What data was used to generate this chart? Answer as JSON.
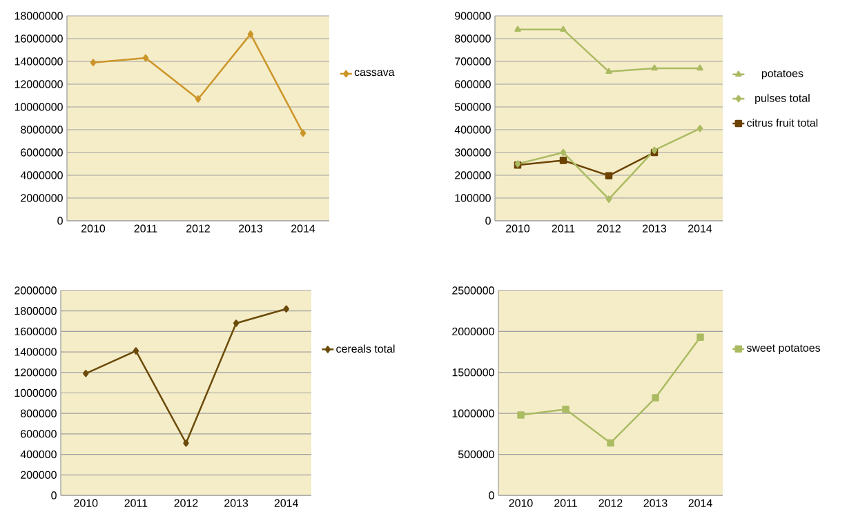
{
  "chart_data": [
    {
      "type": "line",
      "categories": [
        "2010",
        "2011",
        "2012",
        "2013",
        "2014"
      ],
      "ylim": [
        0,
        18000000
      ],
      "yticks": [
        0,
        2000000,
        4000000,
        6000000,
        8000000,
        10000000,
        12000000,
        14000000,
        16000000,
        18000000
      ],
      "grid": "y",
      "legend": "right",
      "series": [
        {
          "name": "cassava",
          "color": "#cc9529",
          "marker": "diamond",
          "values": [
            13900000,
            14300000,
            10700000,
            16400000,
            7700000
          ]
        }
      ]
    },
    {
      "type": "line",
      "categories": [
        "2010",
        "2011",
        "2012",
        "2013",
        "2014"
      ],
      "ylim": [
        0,
        900000
      ],
      "yticks": [
        0,
        100000,
        200000,
        300000,
        400000,
        500000,
        600000,
        700000,
        800000,
        900000
      ],
      "grid": "y",
      "legend": "right",
      "series": [
        {
          "name": "potatoes",
          "color": "#abbb62",
          "marker": "triangle",
          "values": [
            840000,
            840000,
            655000,
            670000,
            670000
          ]
        },
        {
          "name": "pulses total",
          "color": "#abbb62",
          "marker": "diamond",
          "values": [
            250000,
            300000,
            95000,
            310000,
            405000
          ]
        },
        {
          "name": "citrus fruit total",
          "color": "#6b4200",
          "marker": "square",
          "values": [
            245000,
            265000,
            198000,
            300000,
            null
          ]
        }
      ]
    },
    {
      "type": "line",
      "categories": [
        "2010",
        "2011",
        "2012",
        "2013",
        "2014"
      ],
      "ylim": [
        0,
        2000000
      ],
      "yticks": [
        0,
        200000,
        400000,
        600000,
        800000,
        1000000,
        1200000,
        1400000,
        1600000,
        1800000,
        2000000
      ],
      "grid": "y",
      "legend": "right",
      "series": [
        {
          "name": "cereals total",
          "color": "#6b4a0a",
          "marker": "diamond",
          "values": [
            1190000,
            1410000,
            510000,
            1680000,
            1820000
          ]
        }
      ]
    },
    {
      "type": "line",
      "categories": [
        "2010",
        "2011",
        "2012",
        "2013",
        "2014"
      ],
      "ylim": [
        0,
        2500000
      ],
      "yticks": [
        0,
        500000,
        1000000,
        1500000,
        2000000,
        2500000
      ],
      "grid": "y",
      "legend": "right",
      "series": [
        {
          "name": "sweet potatoes",
          "color": "#abbb62",
          "marker": "square",
          "values": [
            980000,
            1050000,
            640000,
            1190000,
            1930000
          ]
        }
      ]
    }
  ]
}
